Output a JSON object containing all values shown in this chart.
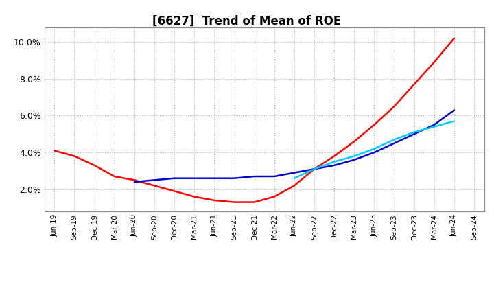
{
  "title": "[6627]  Trend of Mean of ROE",
  "title_fontsize": 12,
  "background_color": "#ffffff",
  "grid_color": "#aaaaaa",
  "ylim": [
    0.008,
    0.108
  ],
  "yticks": [
    0.02,
    0.04,
    0.06,
    0.08,
    0.1
  ],
  "x_labels": [
    "Jun-19",
    "Sep-19",
    "Dec-19",
    "Mar-20",
    "Jun-20",
    "Sep-20",
    "Dec-20",
    "Mar-21",
    "Jun-21",
    "Sep-21",
    "Dec-21",
    "Mar-22",
    "Jun-22",
    "Sep-22",
    "Dec-22",
    "Mar-23",
    "Jun-23",
    "Sep-23",
    "Dec-23",
    "Mar-24",
    "Jun-24",
    "Sep-24"
  ],
  "series": {
    "3 Years": {
      "color": "#ff0000",
      "data": [
        0.041,
        0.038,
        0.033,
        0.027,
        0.025,
        0.022,
        0.019,
        0.016,
        0.014,
        0.013,
        0.013,
        0.016,
        0.022,
        0.031,
        0.038,
        0.046,
        0.055,
        0.065,
        0.077,
        0.089,
        0.102,
        null
      ]
    },
    "5 Years": {
      "color": "#0000cc",
      "data": [
        null,
        null,
        null,
        null,
        0.024,
        0.025,
        0.026,
        0.026,
        0.026,
        0.026,
        0.027,
        0.027,
        0.029,
        0.031,
        0.033,
        0.036,
        0.04,
        0.045,
        0.05,
        0.055,
        0.063,
        null
      ]
    },
    "7 Years": {
      "color": "#00ccff",
      "data": [
        null,
        null,
        null,
        null,
        null,
        null,
        null,
        null,
        null,
        null,
        null,
        null,
        0.026,
        0.031,
        0.035,
        0.038,
        0.042,
        0.047,
        0.051,
        0.054,
        0.057,
        null
      ]
    },
    "10 Years": {
      "color": "#006600",
      "data": [
        null,
        null,
        null,
        null,
        null,
        null,
        null,
        null,
        null,
        null,
        null,
        null,
        null,
        null,
        null,
        null,
        null,
        null,
        null,
        null,
        null,
        null
      ]
    }
  },
  "legend": {
    "3 Years": "#ff0000",
    "5 Years": "#0000cc",
    "7 Years": "#00ccff",
    "10 Years": "#006600"
  }
}
